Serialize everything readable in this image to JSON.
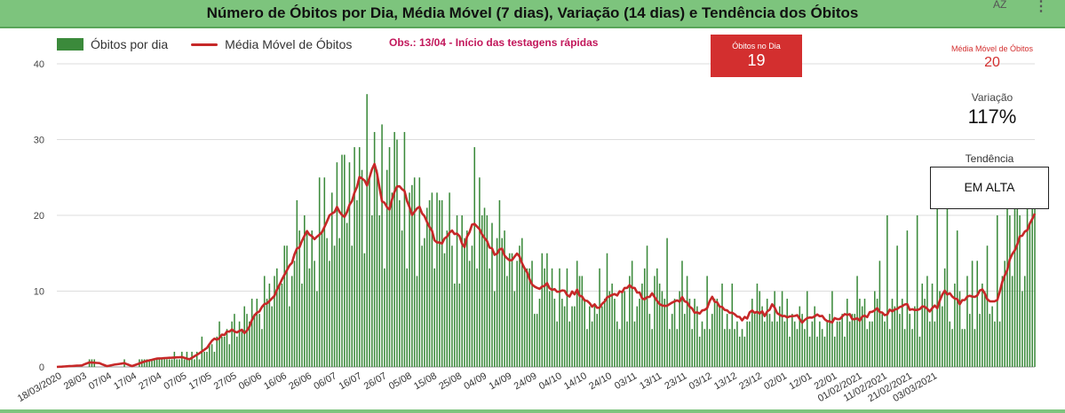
{
  "header": {
    "title": "Número de Óbitos por Dia, Média Móvel (7 dias), Variação (14 dias) e Tendência dos Óbitos",
    "sort_icon_text": "AZ",
    "menu_icon_text": "⋮"
  },
  "legend": {
    "bars_label": "Óbitos por dia",
    "line_label": "Média Móvel de Óbitos"
  },
  "note": "Obs.: 13/04 - Início das testagens rápidas",
  "kpis": {
    "deaths_today": {
      "label": "Óbitos no Dia",
      "value": "19"
    },
    "moving_avg": {
      "label": "Média Móvel de Óbitos",
      "value": "20"
    },
    "variation": {
      "label": "Variação",
      "value": "117%"
    },
    "trend": {
      "label": "Tendência",
      "value": "EM ALTA"
    }
  },
  "colors": {
    "bars": "#3b8a3b",
    "line": "#c62828",
    "header": "#7dc47d",
    "kpi_red": "#d32f2f"
  },
  "chart_data": {
    "type": "bar",
    "title": "Número de Óbitos por Dia, Média Móvel (7 dias), Variação (14 dias) e Tendência dos Óbitos",
    "start_date": "18/03/2020",
    "ylim": [
      0,
      40
    ],
    "yticks": [
      0,
      10,
      20,
      30,
      40
    ],
    "grid": true,
    "legend_position": "top-left",
    "x_tick_labels": [
      "18/03/2020",
      "28/03",
      "07/04",
      "17/04",
      "27/04",
      "07/05",
      "17/05",
      "27/05",
      "06/06",
      "16/06",
      "26/06",
      "06/07",
      "16/07",
      "26/07",
      "05/08",
      "15/08",
      "25/08",
      "04/09",
      "14/09",
      "24/09",
      "04/10",
      "14/10",
      "24/10",
      "03/11",
      "13/11",
      "23/11",
      "03/12",
      "13/12",
      "23/12",
      "02/01",
      "12/01",
      "22/01",
      "01/02/2021",
      "11/02/2021",
      "21/02/2021",
      "03/03/2021"
    ],
    "anchors": {
      "moving_average": [
        [
          0,
          0
        ],
        [
          10,
          0.2
        ],
        [
          13,
          0.6
        ],
        [
          17,
          0.5
        ],
        [
          20,
          0.1
        ],
        [
          23,
          0.3
        ],
        [
          27,
          0.5
        ],
        [
          30,
          0.1
        ],
        [
          35,
          0.7
        ],
        [
          40,
          1.1
        ],
        [
          45,
          1.2
        ],
        [
          50,
          1.3
        ],
        [
          53,
          1.0
        ],
        [
          57,
          1.8
        ],
        [
          60,
          2.5
        ],
        [
          63,
          3.5
        ],
        [
          65,
          4.0
        ],
        [
          68,
          4.5
        ],
        [
          70,
          5.0
        ],
        [
          73,
          4.5
        ],
        [
          76,
          4.9
        ],
        [
          79,
          6.5
        ],
        [
          82,
          8.0
        ],
        [
          85,
          8.5
        ],
        [
          88,
          10
        ],
        [
          91,
          12
        ],
        [
          94,
          14
        ],
        [
          97,
          16
        ],
        [
          100,
          18
        ],
        [
          103,
          17
        ],
        [
          106,
          18
        ],
        [
          109,
          20
        ],
        [
          112,
          21
        ],
        [
          115,
          20
        ],
        [
          118,
          22
        ],
        [
          121,
          25
        ],
        [
          124,
          24
        ],
        [
          127,
          27
        ],
        [
          130,
          22
        ],
        [
          133,
          21
        ],
        [
          136,
          24
        ],
        [
          139,
          23
        ],
        [
          142,
          20
        ],
        [
          145,
          21
        ],
        [
          148,
          19
        ],
        [
          151,
          17
        ],
        [
          154,
          16
        ],
        [
          157,
          18
        ],
        [
          160,
          17.5
        ],
        [
          163,
          16
        ],
        [
          166,
          19
        ],
        [
          169,
          18
        ],
        [
          172,
          16.5
        ],
        [
          175,
          15
        ],
        [
          178,
          15.5
        ],
        [
          181,
          14
        ],
        [
          184,
          15
        ],
        [
          187,
          13
        ],
        [
          190,
          11
        ],
        [
          193,
          10.5
        ],
        [
          196,
          11
        ],
        [
          199,
          10
        ],
        [
          202,
          10
        ],
        [
          205,
          9.5
        ],
        [
          208,
          10
        ],
        [
          211,
          9
        ],
        [
          214,
          8
        ],
        [
          217,
          8
        ],
        [
          220,
          9
        ],
        [
          223,
          9.5
        ],
        [
          226,
          10
        ],
        [
          229,
          10.5
        ],
        [
          232,
          10
        ],
        [
          235,
          9
        ],
        [
          238,
          9.5
        ],
        [
          241,
          8.5
        ],
        [
          244,
          8
        ],
        [
          247,
          8.5
        ],
        [
          250,
          9
        ],
        [
          253,
          8
        ],
        [
          256,
          7
        ],
        [
          259,
          7.5
        ],
        [
          262,
          9
        ],
        [
          265,
          8
        ],
        [
          268,
          7.5
        ],
        [
          271,
          7
        ],
        [
          274,
          6
        ],
        [
          277,
          7
        ],
        [
          280,
          7.5
        ],
        [
          283,
          7
        ],
        [
          286,
          8
        ],
        [
          289,
          7
        ],
        [
          292,
          6.5
        ],
        [
          295,
          7
        ],
        [
          298,
          6
        ],
        [
          301,
          6.5
        ],
        [
          304,
          7
        ],
        [
          307,
          6.5
        ],
        [
          310,
          6
        ],
        [
          313,
          6.5
        ],
        [
          316,
          7
        ],
        [
          319,
          6
        ],
        [
          322,
          6.5
        ],
        [
          325,
          7
        ],
        [
          328,
          7.5
        ],
        [
          331,
          7
        ],
        [
          334,
          7.5
        ],
        [
          337,
          8
        ],
        [
          340,
          8
        ],
        [
          343,
          7.5
        ],
        [
          346,
          8
        ],
        [
          349,
          7.5
        ],
        [
          352,
          8
        ],
        [
          355,
          10
        ],
        [
          358,
          9.5
        ],
        [
          361,
          8.5
        ],
        [
          364,
          9
        ],
        [
          367,
          9.5
        ],
        [
          370,
          10
        ],
        [
          373,
          8.5
        ],
        [
          376,
          9
        ],
        [
          379,
          12
        ],
        [
          382,
          15
        ],
        [
          385,
          17
        ],
        [
          388,
          18
        ],
        [
          391,
          20
        ]
      ],
      "daily_peaks": [
        [
          75,
          8
        ],
        [
          85,
          11
        ],
        [
          92,
          16
        ],
        [
          100,
          18
        ],
        [
          107,
          25
        ],
        [
          112,
          27
        ],
        [
          115,
          28
        ],
        [
          117,
          27
        ],
        [
          119,
          29
        ],
        [
          121,
          29
        ],
        [
          124,
          36
        ],
        [
          127,
          31
        ],
        [
          130,
          32
        ],
        [
          133,
          29
        ],
        [
          136,
          30
        ],
        [
          139,
          31
        ],
        [
          141,
          23
        ],
        [
          143,
          25
        ],
        [
          145,
          25
        ],
        [
          148,
          21
        ],
        [
          150,
          23
        ],
        [
          152,
          23
        ],
        [
          156,
          18
        ],
        [
          160,
          20
        ],
        [
          164,
          18
        ],
        [
          167,
          29
        ],
        [
          170,
          20
        ],
        [
          174,
          19
        ],
        [
          176,
          17
        ],
        [
          179,
          18
        ],
        [
          185,
          16
        ],
        [
          190,
          14
        ],
        [
          198,
          13
        ],
        [
          204,
          13
        ],
        [
          210,
          12
        ],
        [
          217,
          13
        ],
        [
          220,
          15
        ],
        [
          230,
          14
        ],
        [
          236,
          16
        ],
        [
          244,
          17
        ],
        [
          250,
          14
        ],
        [
          260,
          12
        ],
        [
          270,
          11
        ],
        [
          280,
          11
        ],
        [
          290,
          10
        ],
        [
          300,
          10
        ],
        [
          310,
          10
        ],
        [
          320,
          12
        ],
        [
          329,
          14
        ],
        [
          332,
          20
        ],
        [
          336,
          16
        ],
        [
          340,
          18
        ],
        [
          344,
          20
        ],
        [
          348,
          12
        ],
        [
          352,
          22
        ],
        [
          356,
          21
        ],
        [
          360,
          18
        ],
        [
          364,
          12
        ],
        [
          368,
          14
        ],
        [
          372,
          16
        ],
        [
          376,
          20
        ],
        [
          380,
          22
        ],
        [
          384,
          22
        ],
        [
          388,
          23
        ],
        [
          391,
          22
        ]
      ]
    }
  }
}
